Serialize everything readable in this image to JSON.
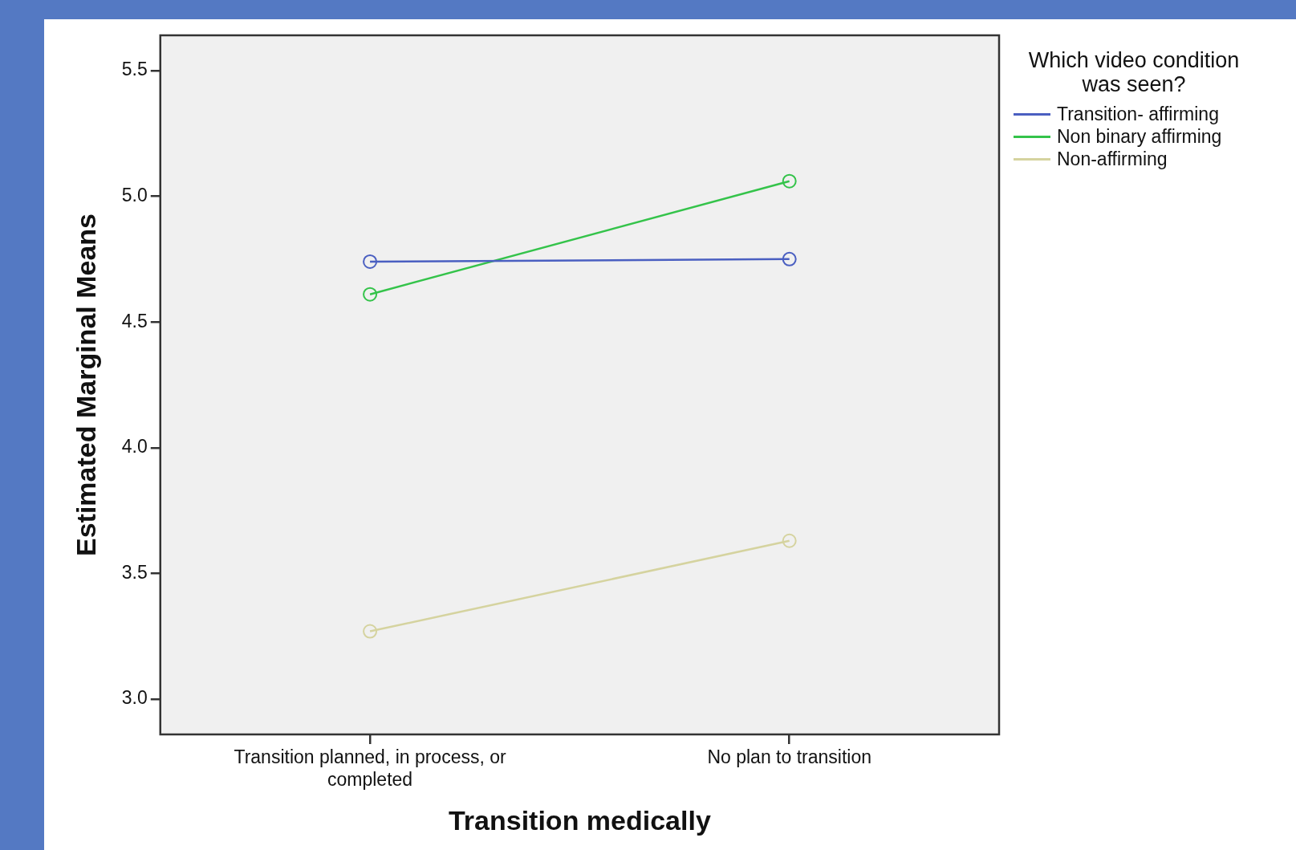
{
  "chart_data": {
    "type": "line",
    "xlabel": "Transition medically",
    "ylabel": "Estimated Marginal Means",
    "legend_title": "Which video condition was seen?",
    "categories": [
      "Transition planned, in process, or completed",
      "No plan to transition"
    ],
    "series": [
      {
        "name": "Transition- affirming",
        "color": "#4a5fc1",
        "values": [
          4.74,
          4.75
        ]
      },
      {
        "name": "Non binary affirming",
        "color": "#34c34a",
        "values": [
          4.61,
          5.06
        ]
      },
      {
        "name": "Non-affirming",
        "color": "#d5d39f",
        "values": [
          3.27,
          3.63
        ]
      }
    ],
    "ylim": [
      2.86,
      5.64
    ],
    "yticks": [
      {
        "value": 3,
        "label": "3.0"
      },
      {
        "value": 3.5,
        "label": "3.5"
      },
      {
        "value": 4,
        "label": "4.0"
      },
      {
        "value": 4.5,
        "label": "4.5"
      },
      {
        "value": 5,
        "label": "5.0"
      },
      {
        "value": 5.5,
        "label": "5.5"
      }
    ],
    "grid": false,
    "legend": "top right",
    "marker": "circle",
    "line_style": "solid"
  }
}
